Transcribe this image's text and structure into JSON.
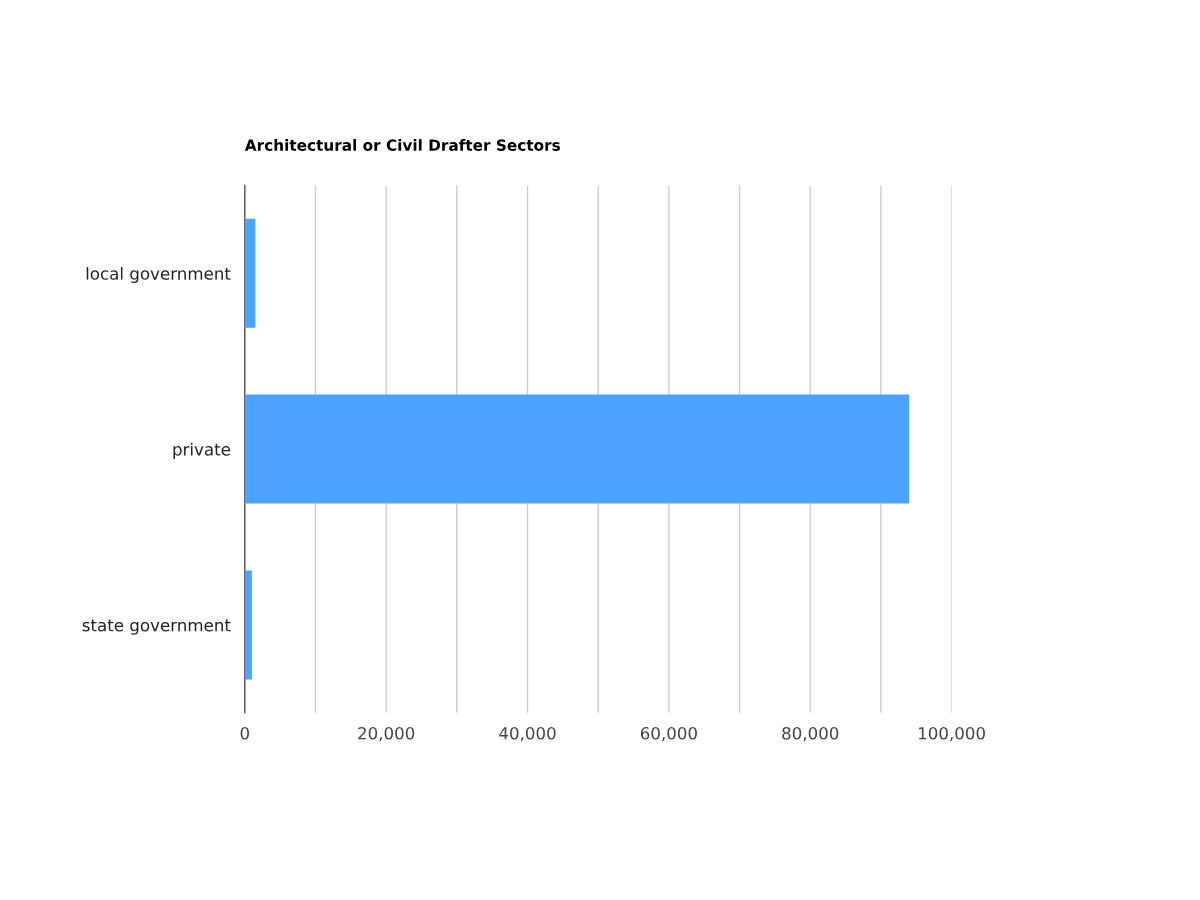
{
  "chart_data": {
    "type": "bar",
    "orientation": "horizontal",
    "title": "Architectural or Civil Drafter Sectors",
    "categories": [
      "local government",
      "private",
      "state government"
    ],
    "values": [
      1500,
      94000,
      1000
    ],
    "color": "#4da3ff",
    "xlim": [
      0,
      100000
    ],
    "xticks": [
      0,
      {
        "value": 10000,
        "label": null
      },
      {
        "value": 20000,
        "label": "20,000"
      },
      {
        "value": 30000,
        "label": null
      },
      {
        "value": 40000,
        "label": "40,000"
      },
      {
        "value": 50000,
        "label": null
      },
      {
        "value": 60000,
        "label": "60,000"
      },
      {
        "value": 70000,
        "label": null
      },
      {
        "value": 80000,
        "label": "80,000"
      },
      {
        "value": 90000,
        "label": null
      },
      {
        "value": 100000,
        "label": "100,000"
      }
    ],
    "grid": "x",
    "legend": false
  }
}
